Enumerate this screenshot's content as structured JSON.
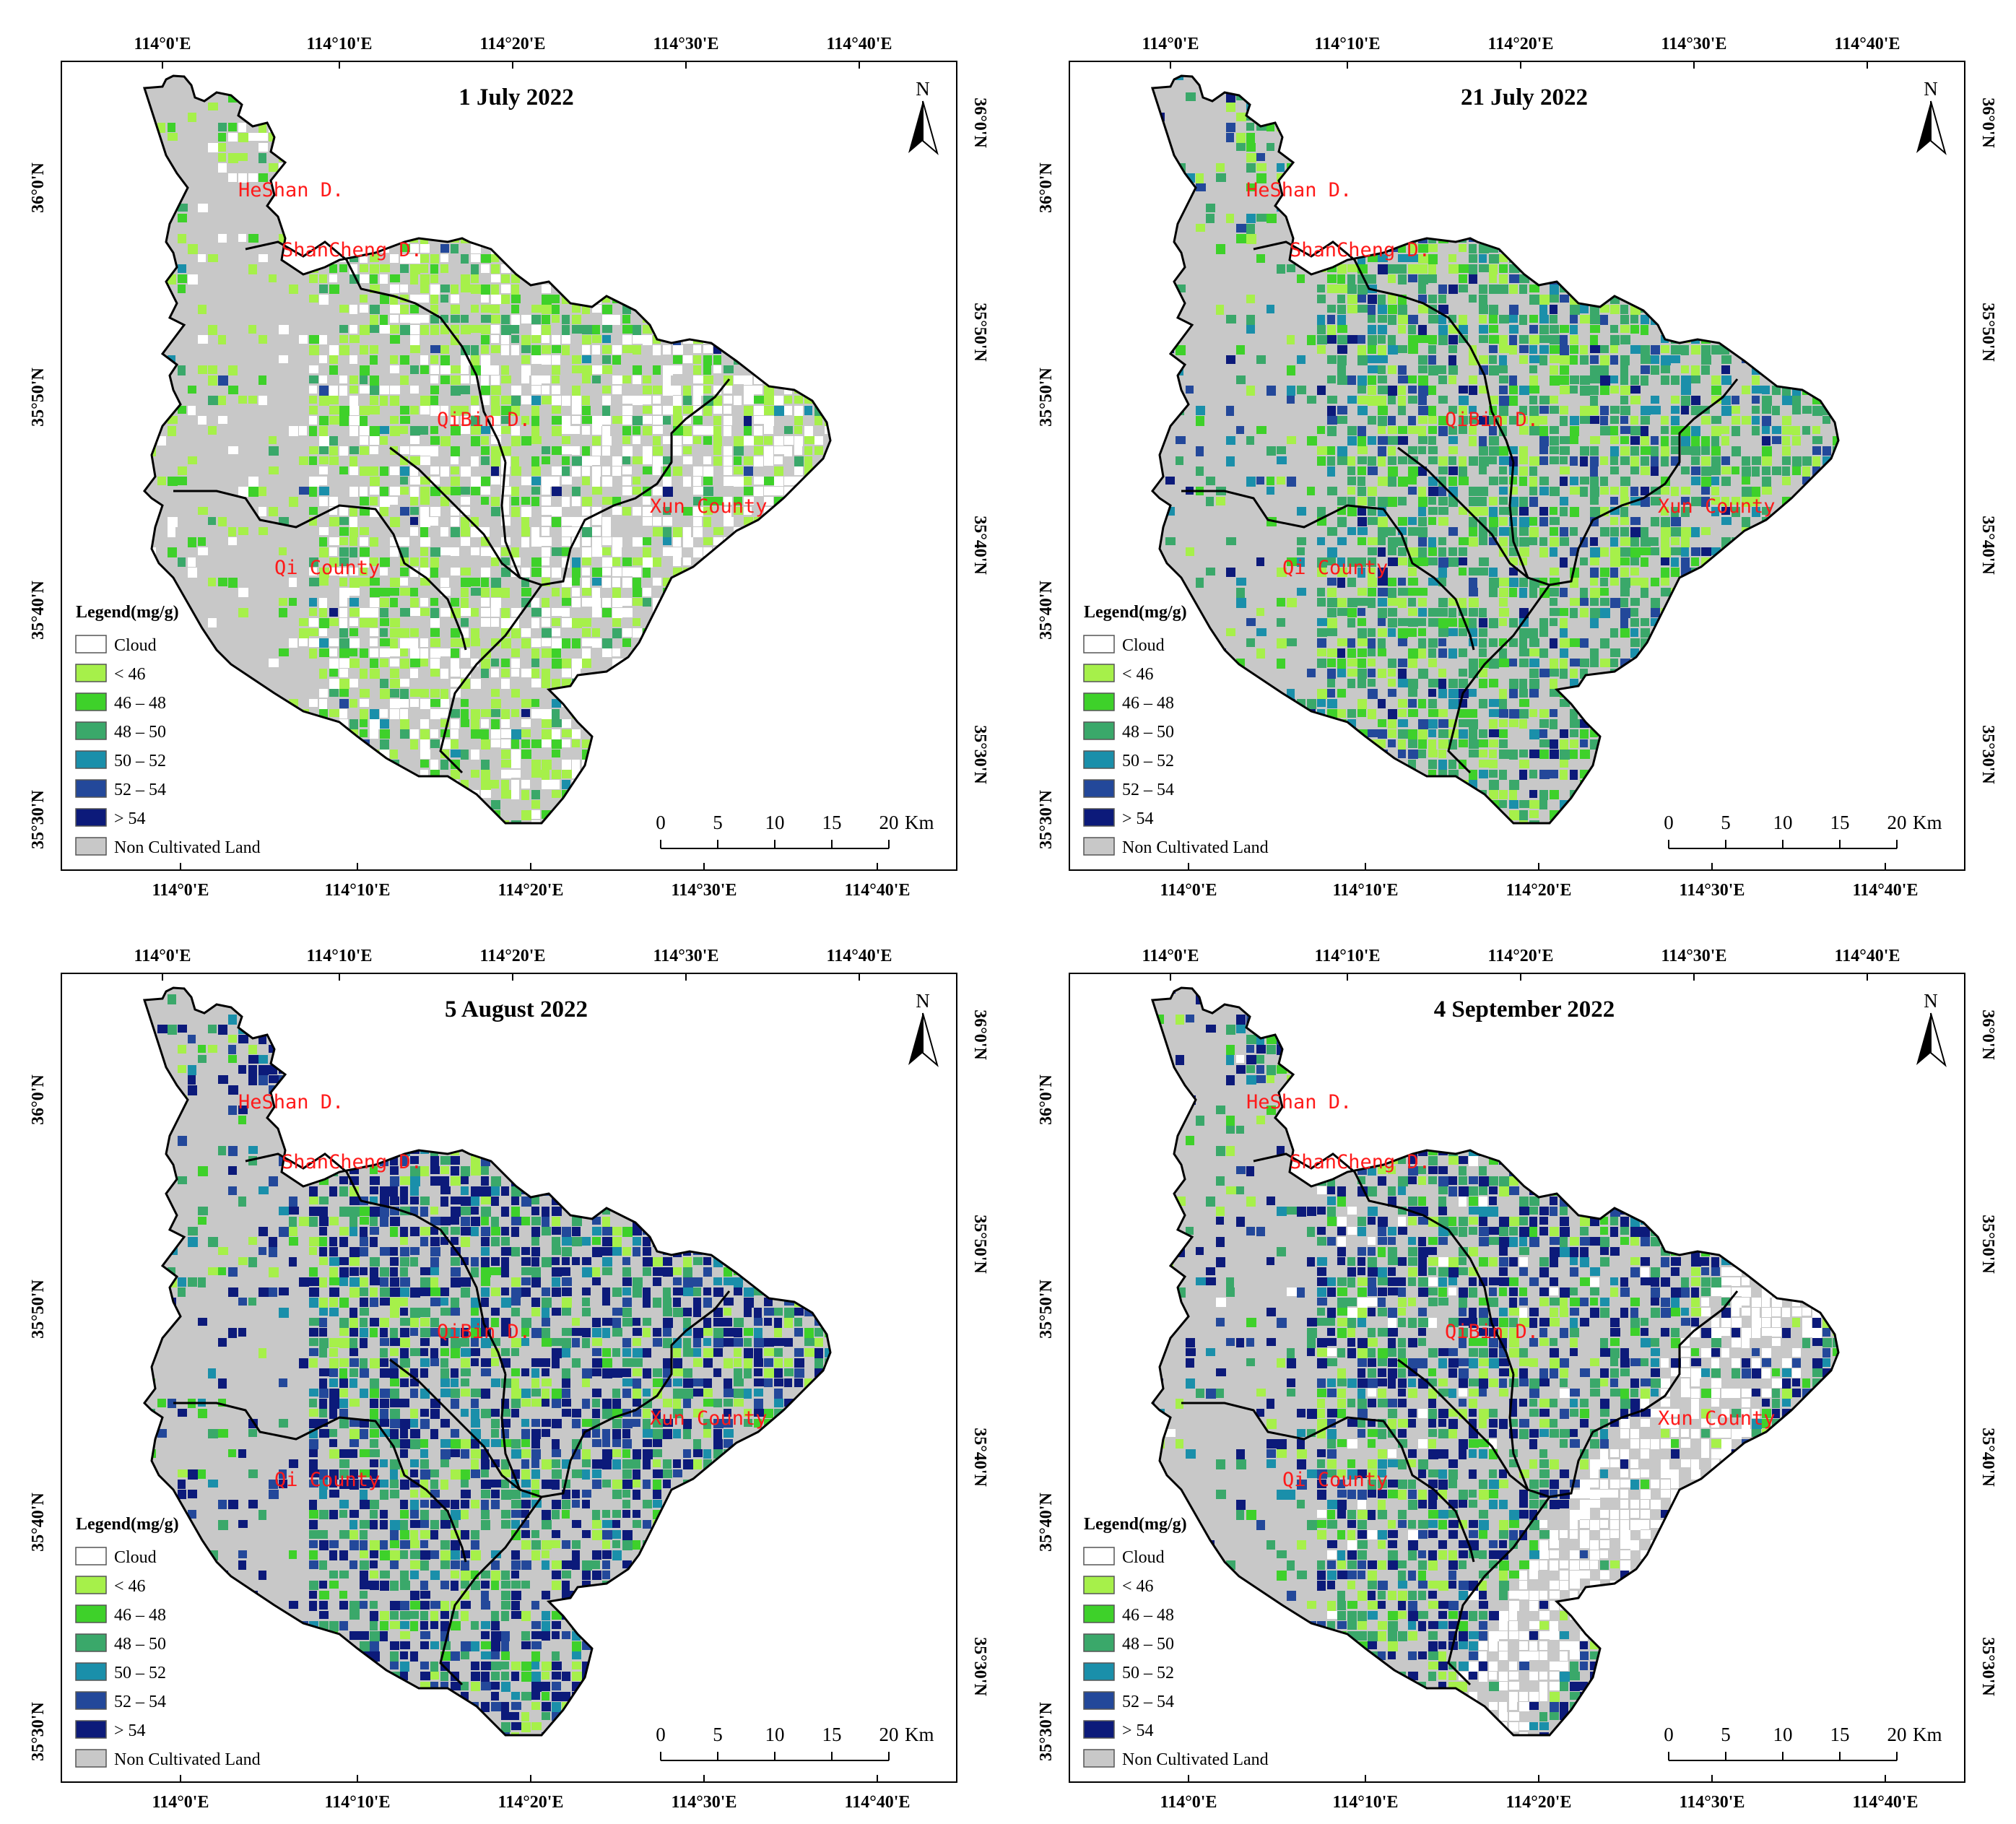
{
  "colors": {
    "cloud": "#ffffff",
    "lt46": "#a6f04a",
    "c46_48": "#3ed12a",
    "c48_50": "#3aa86a",
    "c50_52": "#1a8faa",
    "c52_54": "#23489a",
    "gt54": "#0c1a7a",
    "non_cultivated": "#c8c8c8",
    "region_label": "#ff1a1a"
  },
  "axes": {
    "x_ticks": [
      "114°0'E",
      "114°10'E",
      "114°20'E",
      "114°30'E",
      "114°40'E"
    ],
    "y_ticks": [
      "36°0'N",
      "35°50'N",
      "35°40'N",
      "35°30'N"
    ]
  },
  "regions": [
    "HeShan D.",
    "ShanCheng D.",
    "QiBin D.",
    "Xun County",
    "Qi County"
  ],
  "north_label": "N",
  "legend": {
    "title": "Legend(mg/g)",
    "items": [
      {
        "label": "Cloud",
        "color_key": "cloud"
      },
      {
        "label": "< 46",
        "color_key": "lt46"
      },
      {
        "label": "46 – 48",
        "color_key": "c46_48"
      },
      {
        "label": "48 – 50",
        "color_key": "c48_50"
      },
      {
        "label": "50 – 52",
        "color_key": "c50_52"
      },
      {
        "label": "52 – 54",
        "color_key": "c52_54"
      },
      {
        "label": "> 54",
        "color_key": "gt54"
      },
      {
        "label": "Non Cultivated Land",
        "color_key": "non_cultivated"
      }
    ]
  },
  "scale_bar": {
    "ticks": [
      "0",
      "5",
      "10",
      "15",
      "20"
    ],
    "unit": "Km"
  },
  "panels": [
    {
      "title": "1 July 2022",
      "dominant": "lt46",
      "cloud_fraction": 0.35,
      "mix": {
        "lt46": 0.55,
        "c46_48": 0.25,
        "c48_50": 0.15,
        "c50_52": 0.03,
        "c52_54": 0.01,
        "gt54": 0.01
      }
    },
    {
      "title": "21 July 2022",
      "dominant": "c48_50",
      "cloud_fraction": 0.0,
      "mix": {
        "lt46": 0.22,
        "c46_48": 0.12,
        "c48_50": 0.38,
        "c50_52": 0.12,
        "c52_54": 0.1,
        "gt54": 0.06
      }
    },
    {
      "title": "5 August 2022",
      "dominant": "gt54",
      "cloud_fraction": 0.0,
      "mix": {
        "lt46": 0.12,
        "c46_48": 0.06,
        "c48_50": 0.22,
        "c50_52": 0.1,
        "c52_54": 0.15,
        "gt54": 0.35
      }
    },
    {
      "title": "4 September 2022",
      "dominant": "gt54",
      "cloud_fraction": 0.2,
      "mix": {
        "lt46": 0.15,
        "c46_48": 0.08,
        "c48_50": 0.25,
        "c50_52": 0.08,
        "c52_54": 0.12,
        "gt54": 0.32
      }
    }
  ]
}
